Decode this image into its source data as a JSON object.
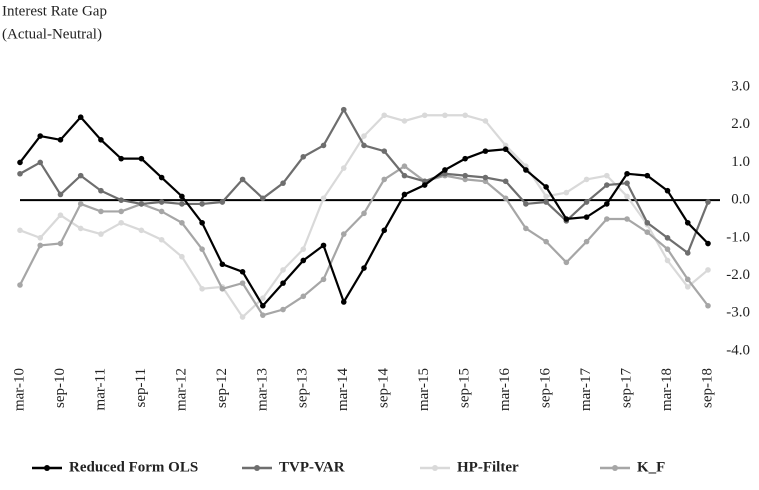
{
  "chart_data": {
    "type": "line",
    "title": "Interest Rate Gap",
    "subtitle": "(Actual-Neutral)",
    "categories": [
      "mar-10",
      null,
      "sep-10",
      null,
      "mar-11",
      null,
      "sep-11",
      null,
      "mar-12",
      null,
      "sep-12",
      null,
      "mar-13",
      null,
      "sep-13",
      null,
      "mar-14",
      null,
      "sep-14",
      null,
      "mar-15",
      null,
      "sep-15",
      null,
      "mar-16",
      null,
      "sep-16",
      null,
      "mar-17",
      null,
      "sep-17",
      null,
      "mar-18",
      null,
      "sep-18"
    ],
    "series": [
      {
        "name": "Reduced Form OLS",
        "color": "#000000",
        "values": [
          1.0,
          1.7,
          1.6,
          2.2,
          1.6,
          1.1,
          1.1,
          0.6,
          0.1,
          -0.6,
          -1.7,
          -1.9,
          -2.8,
          -2.2,
          -1.6,
          -1.2,
          -2.7,
          -1.8,
          -0.8,
          0.15,
          0.4,
          0.8,
          1.1,
          1.3,
          1.35,
          0.8,
          0.35,
          -0.5,
          -0.45,
          -0.1,
          0.7,
          0.65,
          0.25,
          -0.6,
          -1.15
        ]
      },
      {
        "name": "TVP-VAR",
        "color": "#6e6e6e",
        "values": [
          0.7,
          1.0,
          0.15,
          0.65,
          0.25,
          0.0,
          -0.1,
          -0.05,
          -0.1,
          -0.1,
          -0.05,
          0.55,
          0.05,
          0.45,
          1.15,
          1.45,
          2.4,
          1.45,
          1.3,
          0.65,
          0.5,
          0.7,
          0.65,
          0.6,
          0.5,
          -0.1,
          -0.05,
          -0.55,
          -0.05,
          0.4,
          0.45,
          -0.6,
          -1.0,
          -1.4,
          -0.05
        ]
      },
      {
        "name": "HP-Filter",
        "color": "#d9d9d9",
        "values": [
          -0.8,
          -1.0,
          -0.4,
          -0.75,
          -0.9,
          -0.6,
          -0.8,
          -1.05,
          -1.5,
          -2.35,
          -2.3,
          -3.1,
          -2.6,
          -1.85,
          -1.3,
          0.05,
          0.85,
          1.7,
          2.25,
          2.1,
          2.25,
          2.25,
          2.25,
          2.1,
          1.45,
          0.9,
          0.1,
          0.2,
          0.55,
          0.65,
          0.1,
          -0.65,
          -1.6,
          -2.3,
          -1.85
        ]
      },
      {
        "name": "K_F",
        "color": "#a6a6a6",
        "values": [
          -2.25,
          -1.2,
          -1.15,
          -0.1,
          -0.3,
          -0.3,
          -0.1,
          -0.3,
          -0.6,
          -1.3,
          -2.35,
          -2.2,
          -3.05,
          -2.9,
          -2.55,
          -2.1,
          -0.9,
          -0.35,
          0.55,
          0.9,
          0.5,
          0.65,
          0.55,
          0.5,
          0.05,
          -0.75,
          -1.1,
          -1.65,
          -1.1,
          -0.5,
          -0.5,
          -0.85,
          -1.3,
          -2.1,
          -2.8
        ]
      }
    ],
    "ylim": [
      -4,
      3
    ],
    "yticks": [
      {
        "value": 3,
        "label": "3.0"
      },
      {
        "value": 2,
        "label": "2.0"
      },
      {
        "value": 1,
        "label": "1.0"
      },
      {
        "value": 0,
        "label": "0.0"
      },
      {
        "value": -1,
        "label": "-1.0"
      },
      {
        "value": -2,
        "label": "-2.0"
      },
      {
        "value": -3,
        "label": "-3.0"
      },
      {
        "value": -4,
        "label": "-4.0"
      }
    ],
    "zero_line": true,
    "legend": "bottom"
  }
}
